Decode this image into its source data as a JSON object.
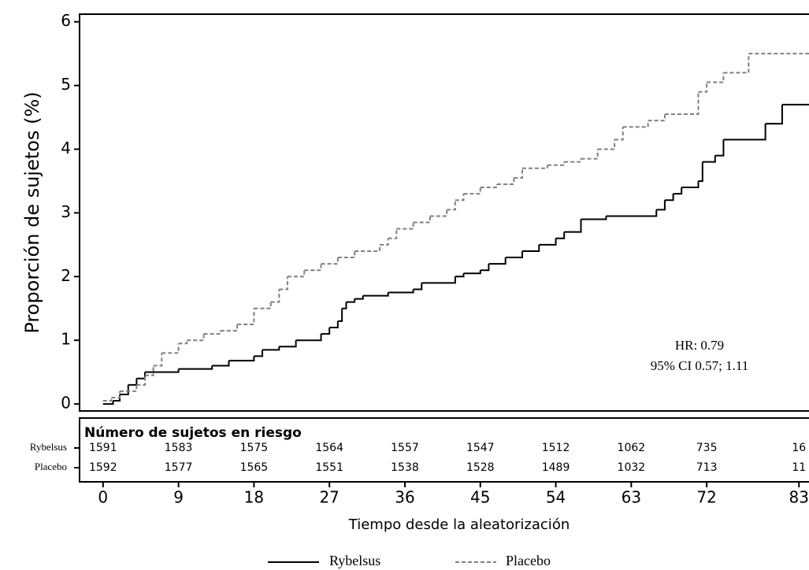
{
  "chart_data": {
    "type": "step",
    "y_label": "Proporción de sujetos (%)",
    "x_label": "Tiempo desde la aleatorización",
    "xlim": [
      -2.8,
      84.2
    ],
    "ylim": [
      -0.11,
      6.12
    ],
    "xticks": [
      0,
      9,
      18,
      27,
      36,
      45,
      54,
      63,
      72,
      83
    ],
    "yticks": [
      0,
      1,
      2,
      3,
      4,
      5,
      6
    ],
    "annotations": [
      "HR: 0.79",
      "95% CI 0.57; 1.11"
    ],
    "series": [
      {
        "name": "Rybelsus",
        "color": "#000000",
        "dash": false,
        "x": [
          0,
          1.2,
          2,
          3,
          4,
          5,
          9,
          13,
          15,
          18,
          19,
          21,
          23,
          26,
          27,
          28,
          28.5,
          29,
          30,
          31,
          34,
          37,
          38,
          42,
          43,
          45,
          46,
          48,
          50,
          52,
          54,
          55,
          57,
          60,
          66,
          67,
          68,
          69,
          71,
          71.5,
          73,
          74,
          79,
          81,
          84.2
        ],
        "y": [
          0,
          0.05,
          0.15,
          0.3,
          0.4,
          0.5,
          0.55,
          0.6,
          0.68,
          0.75,
          0.85,
          0.9,
          1.0,
          1.1,
          1.2,
          1.3,
          1.5,
          1.6,
          1.65,
          1.7,
          1.75,
          1.8,
          1.9,
          2.0,
          2.05,
          2.1,
          2.2,
          2.3,
          2.4,
          2.5,
          2.6,
          2.7,
          2.9,
          2.95,
          3.05,
          3.2,
          3.3,
          3.4,
          3.5,
          3.8,
          3.9,
          4.15,
          4.4,
          4.7,
          4.7
        ]
      },
      {
        "name": "Placebo",
        "color": "#808080",
        "dash": true,
        "x": [
          0,
          1,
          2,
          4,
          5,
          6,
          7,
          9,
          10,
          12,
          14,
          16,
          18,
          20,
          21,
          22,
          24,
          26,
          28,
          30,
          33,
          34,
          35,
          37,
          39,
          41,
          42,
          43,
          45,
          47,
          49,
          50,
          53,
          55,
          57,
          59,
          61,
          62,
          65,
          67,
          71,
          72,
          74,
          77,
          84.2
        ],
        "y": [
          0.05,
          0.1,
          0.2,
          0.3,
          0.45,
          0.6,
          0.8,
          0.95,
          1.0,
          1.1,
          1.15,
          1.25,
          1.5,
          1.6,
          1.8,
          2.0,
          2.1,
          2.2,
          2.3,
          2.4,
          2.5,
          2.6,
          2.75,
          2.85,
          2.95,
          3.05,
          3.2,
          3.3,
          3.4,
          3.45,
          3.55,
          3.7,
          3.75,
          3.8,
          3.85,
          4.0,
          4.15,
          4.35,
          4.45,
          4.55,
          4.9,
          5.05,
          5.2,
          5.5,
          5.5
        ]
      }
    ],
    "risk_table": {
      "title": "Número de sujetos en riesgo",
      "rows": [
        {
          "name": "Rybelsus",
          "values": [
            1591,
            1583,
            1575,
            1564,
            1557,
            1547,
            1512,
            1062,
            735,
            16
          ]
        },
        {
          "name": "Placebo",
          "values": [
            1592,
            1577,
            1565,
            1551,
            1538,
            1528,
            1489,
            1032,
            713,
            11
          ]
        }
      ]
    }
  }
}
